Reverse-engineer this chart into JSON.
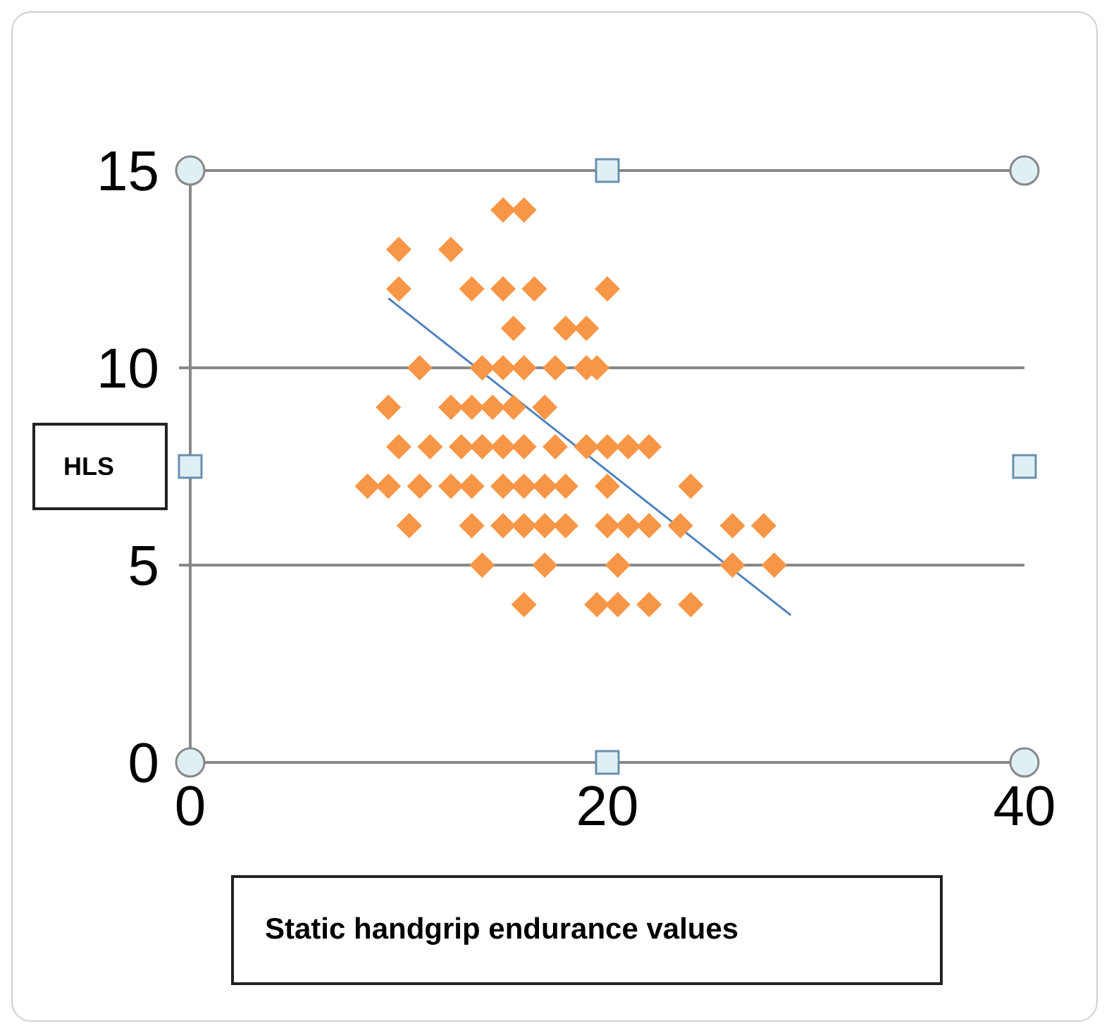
{
  "chart_data": {
    "type": "scatter",
    "xlabel": "Static handgrip endurance values",
    "ylabel": "HLS",
    "xlim": [
      0,
      40
    ],
    "xticks": [
      0,
      20,
      40
    ],
    "ylim": [
      0,
      15
    ],
    "yticks": [
      0,
      5,
      10,
      15
    ],
    "grid": "y",
    "marker": "diamond",
    "series": [
      {
        "color": "#f79646",
        "x": [
          15,
          16,
          10,
          12.5,
          10,
          13.5,
          15,
          16.5,
          20,
          15.5,
          18,
          19,
          11,
          14,
          15,
          16,
          17.5,
          19,
          19.5,
          9.5,
          12.5,
          13.5,
          14.5,
          15.5,
          17,
          10,
          11.5,
          13,
          14,
          15,
          16,
          17.5,
          19,
          20,
          21,
          22,
          8.5,
          9.5,
          11,
          12.5,
          13.5,
          15,
          16,
          17,
          18,
          20,
          24,
          10.5,
          13.5,
          15,
          16,
          17,
          18,
          20,
          21,
          22,
          23.5,
          26,
          27.5,
          14,
          17,
          20.5,
          26,
          28,
          16,
          19.5,
          20.5,
          22,
          24
        ],
        "values": [
          14,
          14,
          13,
          13,
          12,
          12,
          12,
          12,
          12,
          11,
          11,
          11,
          10,
          10,
          10,
          10,
          10,
          10,
          10,
          9,
          9,
          9,
          9,
          9,
          9,
          8,
          8,
          8,
          8,
          8,
          8,
          8,
          8,
          8,
          8,
          8,
          7,
          7,
          7,
          7,
          7,
          7,
          7,
          7,
          7,
          7,
          7,
          6,
          6,
          6,
          6,
          6,
          6,
          6,
          6,
          6,
          6,
          6,
          6,
          5,
          5,
          5,
          5,
          5,
          4,
          4,
          4,
          4,
          4
        ]
      },
      {
        "type": "line",
        "color": "#4f81bd",
        "marker": "none",
        "line_style": "solid",
        "x": [
          9.5,
          28.8
        ],
        "values": [
          11.76,
          3.73
        ]
      }
    ]
  }
}
